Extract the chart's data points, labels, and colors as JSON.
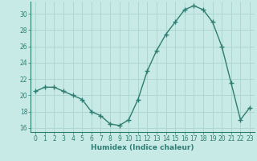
{
  "x": [
    0,
    1,
    2,
    3,
    4,
    5,
    6,
    7,
    8,
    9,
    10,
    11,
    12,
    13,
    14,
    15,
    16,
    17,
    18,
    19,
    20,
    21,
    22,
    23
  ],
  "y": [
    20.5,
    21.0,
    21.0,
    20.5,
    20.0,
    19.5,
    18.0,
    17.5,
    16.5,
    16.3,
    17.0,
    19.5,
    23.0,
    25.5,
    27.5,
    29.0,
    30.5,
    31.0,
    30.5,
    29.0,
    26.0,
    21.5,
    17.0,
    18.5
  ],
  "xlabel": "Humidex (Indice chaleur)",
  "ylim": [
    15.5,
    31.5
  ],
  "yticks": [
    16,
    18,
    20,
    22,
    24,
    26,
    28,
    30
  ],
  "line_color": "#2e7d72",
  "marker": "+",
  "marker_size": 4,
  "marker_lw": 1.0,
  "line_width": 1.0,
  "bg_color": "#c8eae6",
  "grid_color": "#aad4ce",
  "xlabel_color": "#2e7d72",
  "tick_color": "#2e7d72",
  "xlabel_fontsize": 6.5,
  "tick_fontsize": 5.5
}
